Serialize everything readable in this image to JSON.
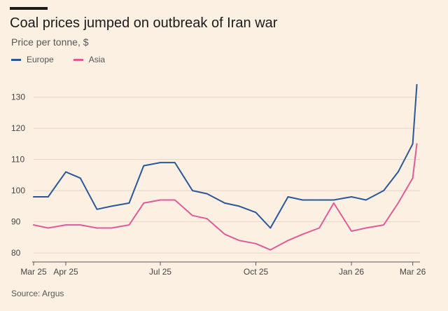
{
  "title": "Coal prices jumped on outbreak of Iran war",
  "subtitle": "Price per tonne, $",
  "source": "Source: Argus",
  "colors": {
    "europe": "#2b5797",
    "asia": "#e05b9a",
    "grid": "#e4d5c6",
    "axis": "#555555",
    "background": "#fcf0e3"
  },
  "chart_data": {
    "type": "line",
    "title": "Coal prices jumped on outbreak of Iran war",
    "ylabel": "Price per tonne, $",
    "ylim": [
      78,
      136
    ],
    "y_ticks": [
      80,
      90,
      100,
      110,
      120,
      130
    ],
    "x_tick_labels": [
      "Mar 25",
      "Apr 25",
      "Jul 25",
      "Oct 25",
      "Jan 26",
      "Mar 26"
    ],
    "grid": true,
    "legend_position": "top-left",
    "x": [
      "2025-03-01",
      "2025-03-15",
      "2025-04-01",
      "2025-04-15",
      "2025-05-01",
      "2025-05-15",
      "2025-06-01",
      "2025-06-15",
      "2025-07-01",
      "2025-07-15",
      "2025-08-01",
      "2025-08-15",
      "2025-09-01",
      "2025-09-15",
      "2025-10-01",
      "2025-10-15",
      "2025-11-01",
      "2025-11-15",
      "2025-12-01",
      "2025-12-15",
      "2026-01-01",
      "2026-01-15",
      "2026-02-01",
      "2026-02-15",
      "2026-03-01",
      "2026-03-05"
    ],
    "series": [
      {
        "name": "Europe",
        "values": [
          98,
          98,
          106,
          104,
          94,
          95,
          96,
          108,
          109,
          109,
          100,
          99,
          96,
          95,
          93,
          88,
          98,
          97,
          97,
          97,
          98,
          97,
          100,
          106,
          115,
          134
        ]
      },
      {
        "name": "Asia",
        "values": [
          89,
          88,
          89,
          89,
          88,
          88,
          89,
          96,
          97,
          97,
          92,
          91,
          86,
          84,
          83,
          81,
          84,
          86,
          88,
          96,
          87,
          88,
          89,
          96,
          104,
          115
        ]
      }
    ]
  }
}
